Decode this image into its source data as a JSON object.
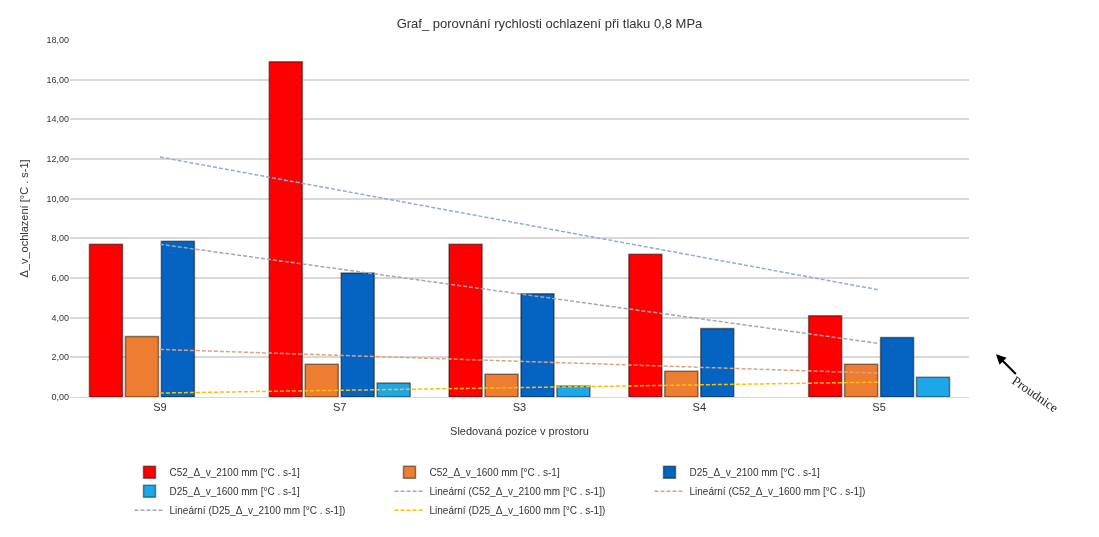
{
  "chart_data": {
    "type": "bar",
    "title": "Graf_ porovnání rychlosti ochlazení při tlaku 0,8 MPa",
    "xlabel": "Sledovaná pozice v prostoru",
    "ylabel": "Δ_v_ochlazení [°C . s-1]",
    "categories": [
      "S9",
      "S7",
      "S3",
      "S4",
      "S5"
    ],
    "series": [
      {
        "name": "C52_Δ_v_2100 mm [°C . s-1]",
        "color": "#ff0000",
        "values": [
          7.7,
          16.9,
          7.7,
          7.2,
          4.1
        ]
      },
      {
        "name": "C52_Δ_v_1600 mm [°C . s-1]",
        "color": "#ed7d31",
        "values": [
          3.05,
          1.65,
          1.15,
          1.3,
          1.65
        ]
      },
      {
        "name": "D25_Δ_v_2100 mm [°C . s-1]",
        "color": "#0563c1",
        "values": [
          7.85,
          6.25,
          5.2,
          3.45,
          3.0
        ]
      },
      {
        "name": "D25_Δ_v_1600 mm [°C . s-1]",
        "color": "#1ea7e8",
        "values": [
          null,
          0.7,
          0.55,
          null,
          1.0
        ]
      },
      {
        "name": "Lineární (C52_Δ_v_2100 mm [°C . s-1])",
        "type": "line",
        "line_style": "dashed",
        "color": "#8faadc",
        "x": [
          "S9",
          "S5"
        ],
        "values": [
          12.1,
          5.4
        ]
      },
      {
        "name": "Lineární (C52_Δ_v_1600 mm [°C . s-1])",
        "type": "line",
        "line_style": "dashed",
        "color": "#e0a080",
        "x": [
          "S9",
          "S5"
        ],
        "values": [
          2.4,
          1.2
        ]
      },
      {
        "name": "Lineární (D25_Δ_v_2100 mm [°C . s-1])",
        "type": "line",
        "line_style": "dashed",
        "color": "#a5a5b5",
        "x": [
          "S9",
          "S5"
        ],
        "values": [
          7.7,
          2.7
        ]
      },
      {
        "name": "Lineární (D25_Δ_v_1600 mm [°C . s-1])",
        "type": "line",
        "line_style": "dashed",
        "color": "#ffc000",
        "x": [
          "S9",
          "S5"
        ],
        "values": [
          0.2,
          0.75
        ]
      }
    ],
    "ylim": [
      0,
      18
    ],
    "yticks": [
      {
        "value": 0,
        "label": "0,00"
      },
      {
        "value": 2,
        "label": "2,00"
      },
      {
        "value": 4,
        "label": "4,00"
      },
      {
        "value": 6,
        "label": "6,00"
      },
      {
        "value": 8,
        "label": "8,00"
      },
      {
        "value": 10,
        "label": "10,00"
      },
      {
        "value": 12,
        "label": "12,00"
      },
      {
        "value": 14,
        "label": "14,00"
      },
      {
        "value": 16,
        "label": "16,00"
      },
      {
        "value": 18,
        "label": "18,00"
      }
    ],
    "grid": "y",
    "legend": "bottom",
    "marker": "none",
    "annotations": [
      "Proudnice"
    ]
  }
}
